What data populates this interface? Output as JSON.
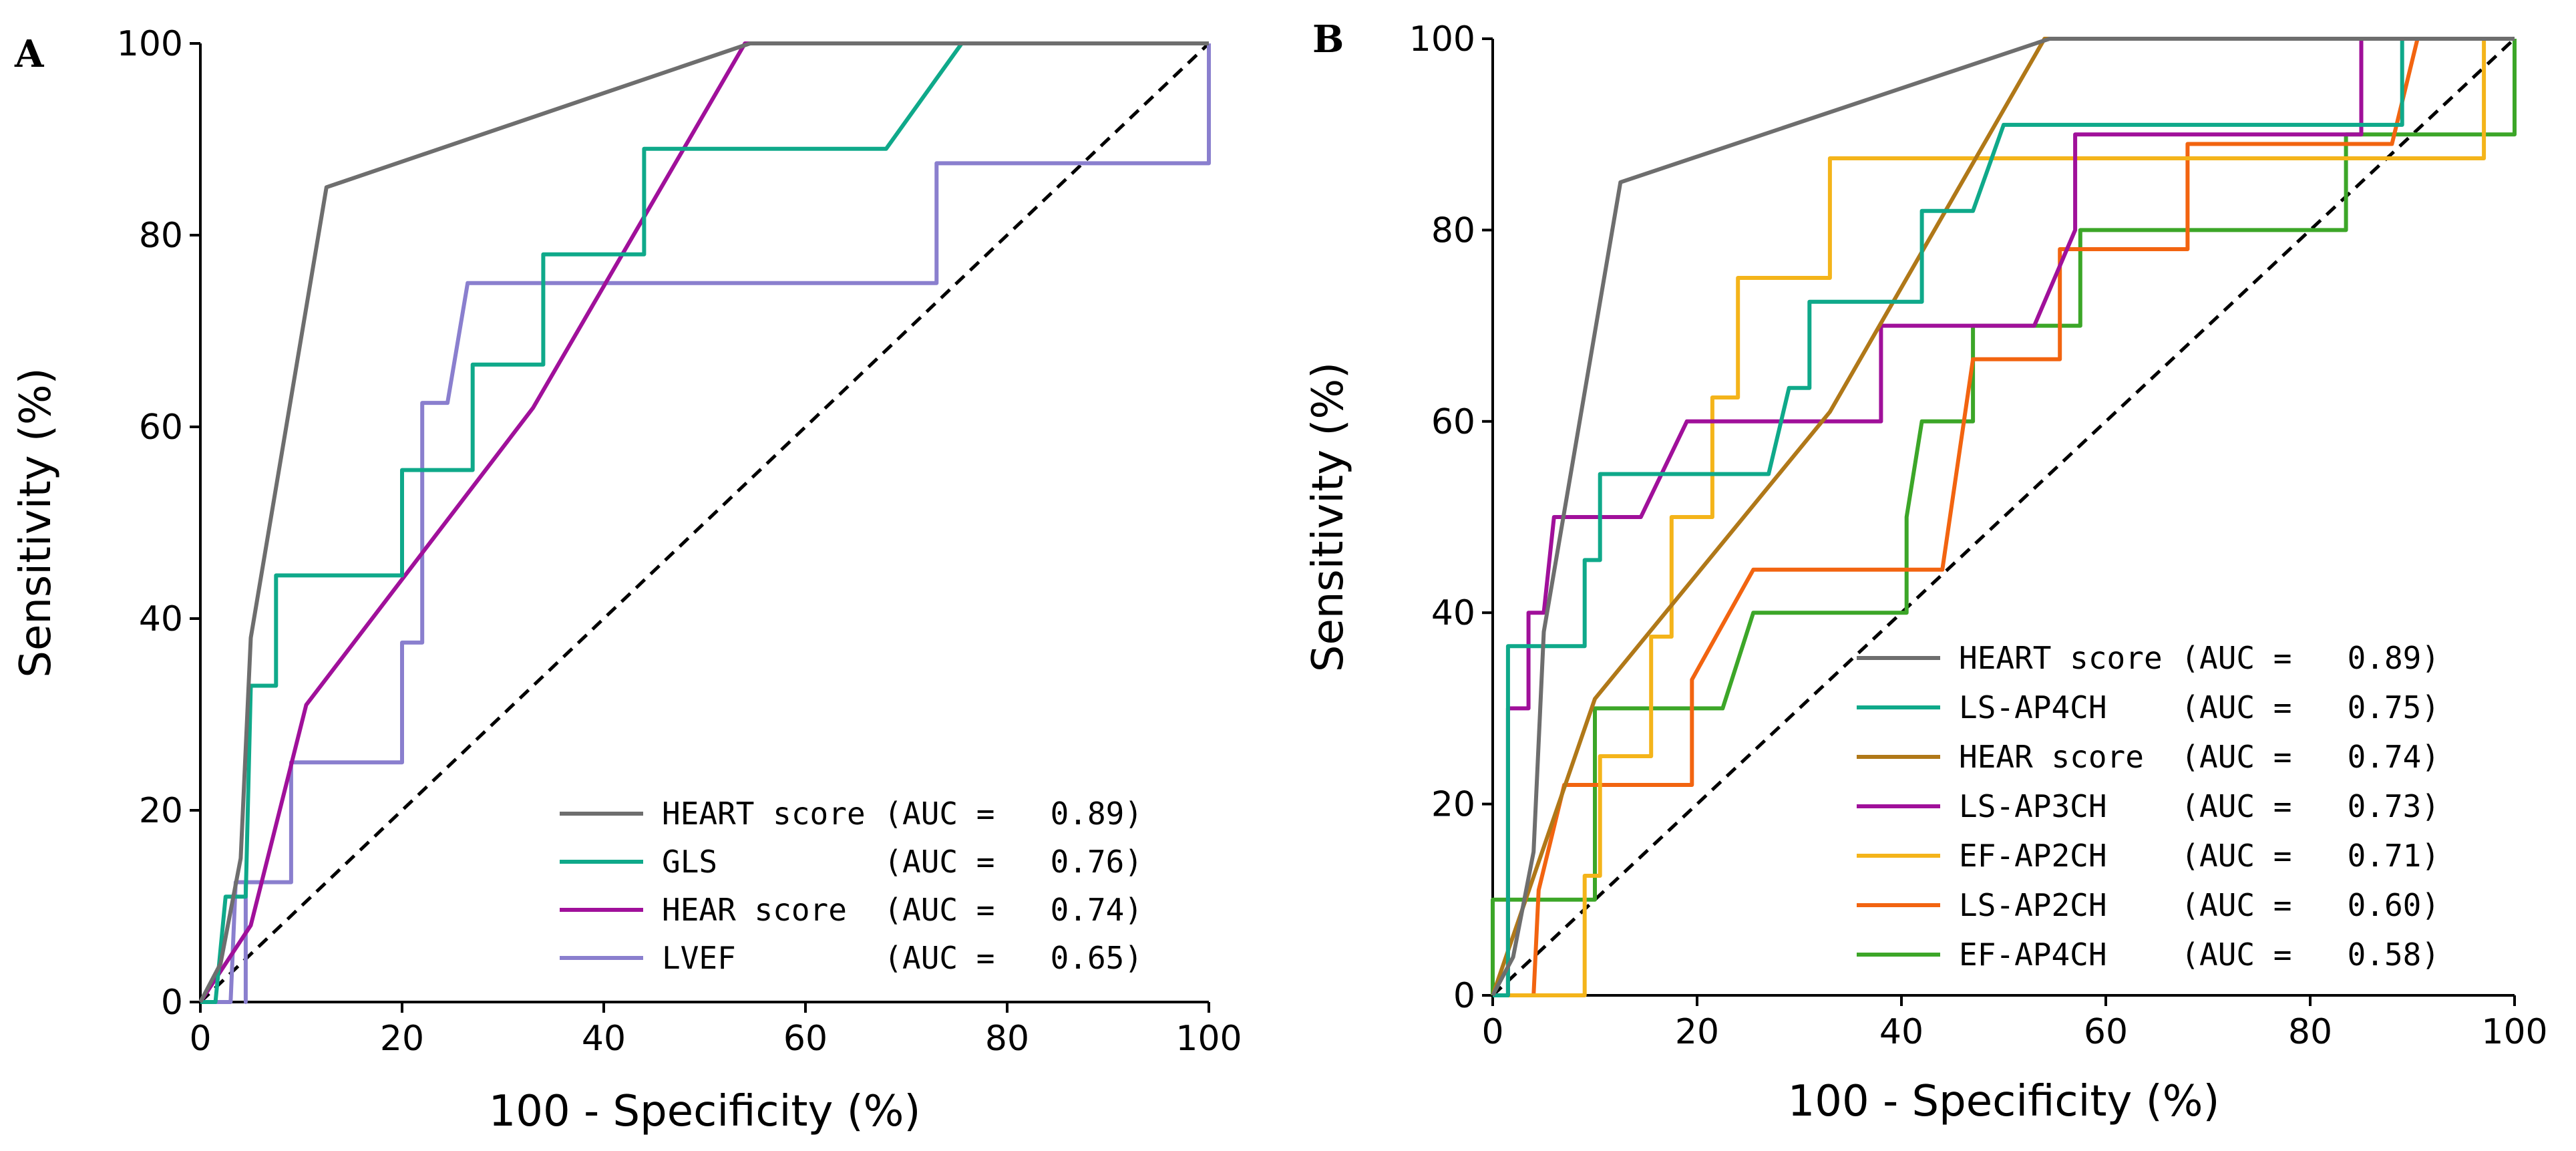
{
  "chart_data": [
    {
      "type": "line",
      "panel": "A",
      "xlabel": "100 - Specificity (%)",
      "ylabel": "Sensitivity (%)",
      "xlim": [
        0,
        100
      ],
      "ylim": [
        0,
        100
      ],
      "xticks": [
        "0",
        "20",
        "40",
        "60",
        "80",
        "100"
      ],
      "yticks": [
        "0",
        "20",
        "40",
        "60",
        "80",
        "100"
      ],
      "legend_position": "bottom-right",
      "reference_line": "diagonal dashed",
      "series": [
        {
          "name": "HEART score",
          "legend": "HEART score (AUC =   0.89)",
          "auc": 0.89,
          "color": "#6e6e6e",
          "points": [
            [
              0,
              0
            ],
            [
              2,
              4
            ],
            [
              4,
              15
            ],
            [
              5,
              38
            ],
            [
              12.5,
              85
            ],
            [
              54.5,
              100
            ],
            [
              100,
              100
            ]
          ]
        },
        {
          "name": "GLS",
          "legend": "GLS         (AUC =   0.76)",
          "auc": 0.76,
          "color": "#0fa98a",
          "points": [
            [
              0,
              0
            ],
            [
              1.5,
              0
            ],
            [
              2.5,
              11
            ],
            [
              4.5,
              11
            ],
            [
              5,
              33
            ],
            [
              7.5,
              33
            ],
            [
              7.5,
              44.5
            ],
            [
              20,
              44.5
            ],
            [
              20,
              55.5
            ],
            [
              27,
              55.5
            ],
            [
              27,
              66.5
            ],
            [
              34,
              66.5
            ],
            [
              34,
              78
            ],
            [
              44,
              78
            ],
            [
              44,
              89
            ],
            [
              68,
              89
            ],
            [
              75.5,
              100
            ],
            [
              100,
              100
            ]
          ]
        },
        {
          "name": "HEAR score",
          "legend": "HEAR score  (AUC =   0.74)",
          "auc": 0.74,
          "color": "#a0109a",
          "points": [
            [
              0,
              0
            ],
            [
              5,
              8
            ],
            [
              10.5,
              31
            ],
            [
              33,
              62
            ],
            [
              54,
              100
            ],
            [
              100,
              100
            ]
          ]
        },
        {
          "name": "LVEF",
          "legend": "LVEF        (AUC =   0.65)",
          "auc": 0.65,
          "color": "#8a7fce",
          "points": [
            [
              0,
              0
            ],
            [
              3,
              0
            ],
            [
              3.5,
              12.5
            ],
            [
              4.5,
              12.5
            ],
            [
              4.5,
              0
            ],
            [
              4.5,
              12.5
            ],
            [
              9,
              12.5
            ],
            [
              9,
              25
            ],
            [
              20,
              25
            ],
            [
              20,
              37.5
            ],
            [
              22,
              37.5
            ],
            [
              22,
              62.5
            ],
            [
              24.5,
              62.5
            ],
            [
              26.5,
              75
            ],
            [
              73,
              75
            ],
            [
              73,
              87.5
            ],
            [
              100,
              87.5
            ],
            [
              100,
              100
            ]
          ]
        }
      ]
    },
    {
      "type": "line",
      "panel": "B",
      "xlabel": "100 - Specificity (%)",
      "ylabel": "Sensitivity (%)",
      "xlim": [
        0,
        100
      ],
      "ylim": [
        0,
        100
      ],
      "xticks": [
        "0",
        "20",
        "40",
        "60",
        "80",
        "100"
      ],
      "yticks": [
        "0",
        "20",
        "40",
        "60",
        "80",
        "100"
      ],
      "legend_position": "bottom-right",
      "reference_line": "diagonal dashed",
      "series": [
        {
          "name": "HEART score",
          "legend": "HEART score (AUC =   0.89)",
          "auc": 0.89,
          "color": "#6e6e6e",
          "points": [
            [
              0,
              0
            ],
            [
              2,
              4
            ],
            [
              4,
              15
            ],
            [
              5,
              38
            ],
            [
              12.5,
              85
            ],
            [
              54.5,
              100
            ],
            [
              100,
              100
            ]
          ]
        },
        {
          "name": "LS-AP4CH",
          "legend": "LS-AP4CH    (AUC =   0.75)",
          "auc": 0.75,
          "color": "#0fa98a",
          "points": [
            [
              0,
              0
            ],
            [
              1.5,
              0
            ],
            [
              1.5,
              36.5
            ],
            [
              9,
              36.5
            ],
            [
              9,
              45.5
            ],
            [
              10.5,
              45.5
            ],
            [
              10.5,
              54.5
            ],
            [
              27,
              54.5
            ],
            [
              29,
              63.5
            ],
            [
              31,
              63.5
            ],
            [
              31,
              72.5
            ],
            [
              38.5,
              72.5
            ],
            [
              38.5,
              72.5
            ],
            [
              42,
              72.5
            ],
            [
              42,
              82
            ],
            [
              47,
              82
            ],
            [
              50,
              91
            ],
            [
              84.5,
              91
            ],
            [
              84.5,
              91
            ],
            [
              89,
              91
            ],
            [
              89,
              100
            ],
            [
              100,
              100
            ]
          ]
        },
        {
          "name": "HEAR score",
          "legend": "HEAR score  (AUC =   0.74)",
          "auc": 0.74,
          "color": "#b07818",
          "points": [
            [
              0,
              0
            ],
            [
              10,
              31
            ],
            [
              33,
              61
            ],
            [
              54,
              100
            ],
            [
              100,
              100
            ]
          ]
        },
        {
          "name": "LS-AP3CH",
          "legend": "LS-AP3CH    (AUC =   0.73)",
          "auc": 0.73,
          "color": "#a0109a",
          "points": [
            [
              0,
              0
            ],
            [
              1.5,
              0
            ],
            [
              1.5,
              30
            ],
            [
              3.5,
              30
            ],
            [
              3.5,
              40
            ],
            [
              5,
              40
            ],
            [
              6,
              50
            ],
            [
              12,
              50
            ],
            [
              12,
              50
            ],
            [
              14.5,
              50
            ],
            [
              19,
              60
            ],
            [
              38,
              60
            ],
            [
              38,
              70
            ],
            [
              53,
              70
            ],
            [
              53,
              70
            ],
            [
              57,
              80
            ],
            [
              57,
              90
            ],
            [
              85,
              90
            ],
            [
              85,
              100
            ],
            [
              100,
              100
            ]
          ]
        },
        {
          "name": "EF-AP2CH",
          "legend": "EF-AP2CH    (AUC =   0.71)",
          "auc": 0.71,
          "color": "#f4b41a",
          "points": [
            [
              0,
              0
            ],
            [
              9,
              0
            ],
            [
              9,
              12.5
            ],
            [
              10.5,
              12.5
            ],
            [
              10.5,
              25
            ],
            [
              15.5,
              25
            ],
            [
              15.5,
              37.5
            ],
            [
              17.5,
              37.5
            ],
            [
              17.5,
              50
            ],
            [
              21.5,
              50
            ],
            [
              21.5,
              62.5
            ],
            [
              24,
              62.5
            ],
            [
              24,
              75
            ],
            [
              33,
              75
            ],
            [
              33,
              87.5
            ],
            [
              97,
              87.5
            ],
            [
              97,
              100
            ],
            [
              100,
              100
            ]
          ]
        },
        {
          "name": "LS-AP2CH",
          "legend": "LS-AP2CH    (AUC =   0.60)",
          "auc": 0.6,
          "color": "#f26410",
          "points": [
            [
              0,
              0
            ],
            [
              4,
              0
            ],
            [
              4.5,
              11
            ],
            [
              7,
              22
            ],
            [
              19.5,
              22
            ],
            [
              19.5,
              33
            ],
            [
              25.5,
              44.5
            ],
            [
              44,
              44.5
            ],
            [
              47,
              66.5
            ],
            [
              55.5,
              66.5
            ],
            [
              55.5,
              78
            ],
            [
              68,
              78
            ],
            [
              68,
              89
            ],
            [
              88,
              89
            ],
            [
              90.5,
              100
            ],
            [
              100,
              100
            ]
          ]
        },
        {
          "name": "EF-AP4CH",
          "legend": "EF-AP4CH    (AUC =   0.58)",
          "auc": 0.58,
          "color": "#3ca628",
          "points": [
            [
              0,
              0
            ],
            [
              0,
              10
            ],
            [
              10,
              10
            ],
            [
              10,
              30
            ],
            [
              22.5,
              30
            ],
            [
              25.5,
              40
            ],
            [
              40.5,
              40
            ],
            [
              40.5,
              50
            ],
            [
              42,
              60
            ],
            [
              47,
              60
            ],
            [
              47,
              70
            ],
            [
              57.5,
              70
            ],
            [
              57.5,
              80
            ],
            [
              83.5,
              80
            ],
            [
              83.5,
              90
            ],
            [
              100,
              90
            ],
            [
              100,
              100
            ]
          ]
        }
      ]
    }
  ]
}
